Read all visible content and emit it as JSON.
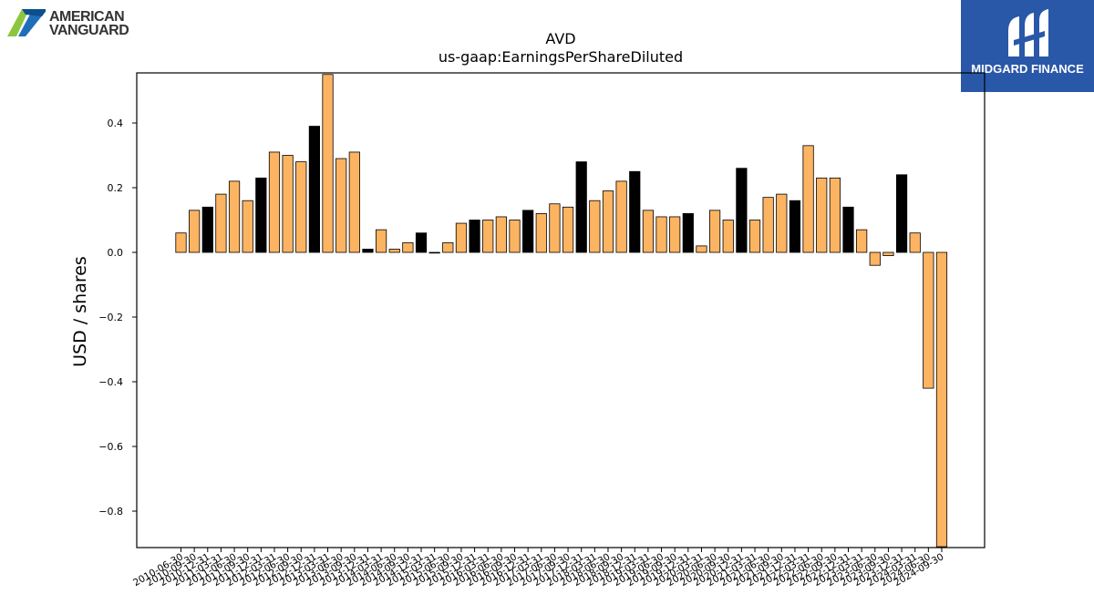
{
  "logos": {
    "left_line1": "AMERICAN",
    "left_line2": "VANGUARD",
    "right": "MIDGARD FINANCE"
  },
  "colors": {
    "bar_default": "#fdb462",
    "bar_highlight": "#000000",
    "bar_edge": "#000000",
    "brand_blue": "#2a58a8"
  },
  "chart_data": {
    "type": "bar",
    "title": "AVD",
    "subtitle": "us-gaap:EarningsPerShareDiluted",
    "xlabel": "",
    "ylabel": "USD / shares",
    "ylim": [
      -0.91,
      0.55
    ],
    "yticks": [
      0.4,
      0.2,
      0.0,
      -0.2,
      -0.4,
      -0.6,
      -0.8
    ],
    "ytick_labels": [
      "0.4",
      "0.2",
      "0.0",
      "−0.2",
      "−0.4",
      "−0.6",
      "−0.8"
    ],
    "grid": false,
    "categories": [
      "2010-06-30",
      "2010-09-30",
      "2010-12-31",
      "2011-03-31",
      "2011-06-30",
      "2011-09-30",
      "2011-12-31",
      "2012-03-31",
      "2012-06-30",
      "2012-09-30",
      "2012-12-31",
      "2013-03-31",
      "2013-06-30",
      "2013-09-30",
      "2013-12-31",
      "2014-03-31",
      "2014-06-30",
      "2014-09-30",
      "2014-12-31",
      "2015-03-31",
      "2015-06-30",
      "2015-09-30",
      "2015-12-31",
      "2016-03-31",
      "2016-06-30",
      "2016-09-30",
      "2016-12-31",
      "2017-03-31",
      "2017-06-30",
      "2017-09-30",
      "2017-12-31",
      "2018-03-31",
      "2018-06-30",
      "2018-09-30",
      "2018-12-31",
      "2019-03-31",
      "2019-06-30",
      "2019-09-30",
      "2019-12-31",
      "2020-03-31",
      "2020-06-30",
      "2020-09-30",
      "2020-12-31",
      "2021-03-31",
      "2021-06-30",
      "2021-09-30",
      "2021-12-31",
      "2022-03-31",
      "2022-06-30",
      "2022-09-30",
      "2022-12-31",
      "2023-03-31",
      "2023-06-30",
      "2023-09-30",
      "2023-12-31",
      "2024-03-31",
      "2024-06-30",
      "2024-09-30"
    ],
    "values": [
      0.06,
      0.13,
      0.14,
      0.18,
      0.22,
      0.16,
      0.23,
      0.31,
      0.3,
      0.28,
      0.39,
      0.55,
      0.29,
      0.31,
      0.01,
      0.07,
      0.01,
      0.03,
      0.06,
      0.0,
      0.03,
      0.09,
      0.1,
      0.1,
      0.11,
      0.1,
      0.13,
      0.12,
      0.15,
      0.14,
      0.28,
      0.16,
      0.19,
      0.22,
      0.25,
      0.13,
      0.11,
      0.11,
      0.12,
      0.02,
      0.13,
      0.1,
      0.26,
      0.1,
      0.17,
      0.18,
      0.16,
      0.33,
      0.23,
      0.23,
      0.14,
      0.07,
      -0.04,
      -0.01,
      0.24,
      0.06,
      -0.42,
      -0.91
    ],
    "highlight": [
      false,
      false,
      true,
      false,
      false,
      false,
      true,
      false,
      false,
      false,
      true,
      false,
      false,
      false,
      true,
      false,
      false,
      false,
      true,
      true,
      false,
      false,
      true,
      false,
      false,
      false,
      true,
      false,
      false,
      false,
      true,
      false,
      false,
      false,
      true,
      false,
      false,
      false,
      true,
      false,
      false,
      false,
      true,
      false,
      false,
      false,
      true,
      false,
      false,
      false,
      true,
      false,
      false,
      false,
      true,
      false,
      false,
      false
    ]
  }
}
